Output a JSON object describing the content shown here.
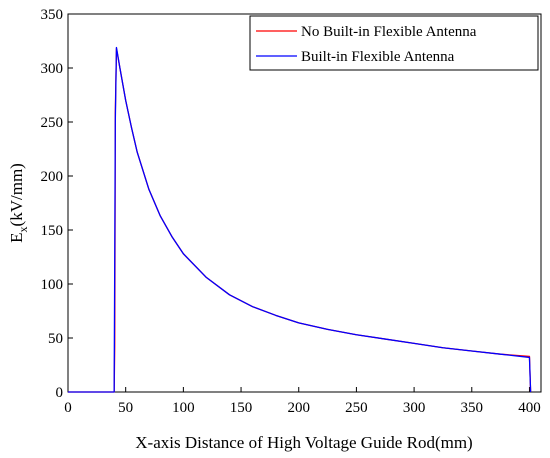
{
  "chart_data": {
    "type": "line",
    "xlabel": "X-axis Distance of High Voltage Guide Rod(mm)",
    "ylabel_main": "E",
    "ylabel_sub": "x",
    "ylabel_unit": "(kV/mm)",
    "xlim": [
      0,
      410
    ],
    "ylim": [
      0,
      350
    ],
    "x_ticks": [
      0,
      50,
      100,
      150,
      200,
      250,
      300,
      350,
      400
    ],
    "y_ticks": [
      0,
      50,
      100,
      150,
      200,
      250,
      300,
      350
    ],
    "grid": false,
    "legend_position": "top-right",
    "series": [
      {
        "name": "No Built-in Flexible Antenna",
        "color": "#ff0000",
        "points": [
          [
            0,
            0
          ],
          [
            40,
            0
          ],
          [
            40.5,
            42
          ],
          [
            40.8,
            150
          ],
          [
            41,
            258
          ],
          [
            42,
            318
          ],
          [
            45,
            300
          ],
          [
            50,
            270
          ],
          [
            55,
            245
          ],
          [
            60,
            222
          ],
          [
            70,
            188
          ],
          [
            80,
            163
          ],
          [
            90,
            144
          ],
          [
            100,
            128
          ],
          [
            120,
            106
          ],
          [
            140,
            90
          ],
          [
            160,
            79
          ],
          [
            180,
            71
          ],
          [
            200,
            64
          ],
          [
            225,
            58
          ],
          [
            250,
            53
          ],
          [
            275,
            49
          ],
          [
            300,
            45
          ],
          [
            325,
            41
          ],
          [
            350,
            38
          ],
          [
            375,
            35
          ],
          [
            400,
            33
          ],
          [
            401,
            0
          ]
        ]
      },
      {
        "name": "Built-in Flexible Antenna",
        "color": "#0000ff",
        "points": [
          [
            0,
            0
          ],
          [
            40,
            0
          ],
          [
            40.5,
            120
          ],
          [
            41,
            250
          ],
          [
            42,
            319
          ],
          [
            45,
            300
          ],
          [
            50,
            270
          ],
          [
            55,
            245
          ],
          [
            60,
            222
          ],
          [
            70,
            188
          ],
          [
            80,
            163
          ],
          [
            90,
            144
          ],
          [
            100,
            128
          ],
          [
            120,
            106
          ],
          [
            140,
            90
          ],
          [
            160,
            79
          ],
          [
            180,
            71
          ],
          [
            200,
            64
          ],
          [
            225,
            58
          ],
          [
            250,
            53
          ],
          [
            275,
            49
          ],
          [
            300,
            45
          ],
          [
            325,
            41
          ],
          [
            350,
            38
          ],
          [
            375,
            35
          ],
          [
            400,
            32
          ],
          [
            401,
            0
          ]
        ]
      }
    ]
  }
}
